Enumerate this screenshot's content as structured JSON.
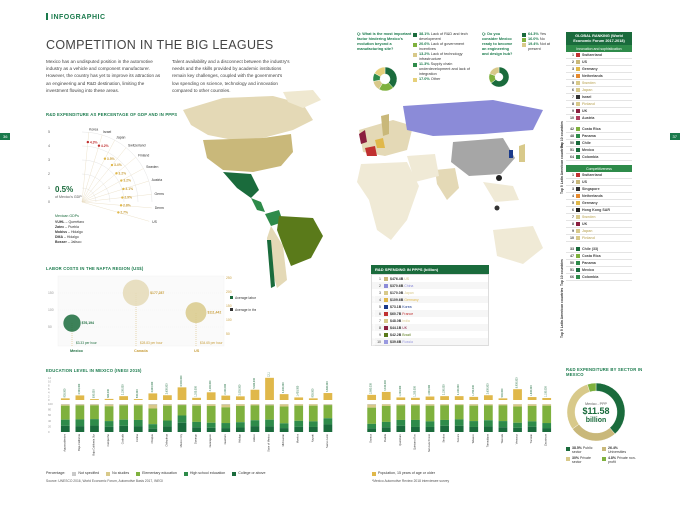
{
  "header": {
    "tag": "INFOGRAPHIC",
    "title": "COMPETITION IN THE BIG LEAGUES",
    "page_left": "36",
    "page_right": "37"
  },
  "intro": {
    "col1": "Mexico has an undisputed position in the automotive industry as a vehicle and component manufacturer. However, the country has yet to improve its attraction as an engineering and R&D destination, limiting the investment flowing into these areas.",
    "col2": "Talent availability and a disconnect between the industry's needs and the skills provided by academic institutions remain key challenges, coupled with the government's low spending on science, technology and innovation compared to other countries."
  },
  "rd_gdp": {
    "title": "R&D EXPENDITURE AS PERCENTAGE OF GDP AND IN PPPS",
    "center_value": "0.5%",
    "center_label": "of Mexico's GDP",
    "countries": [
      "Korea",
      "Israel",
      "Japan",
      "Switzerland",
      "Finland",
      "Sweden",
      "Austria",
      "Germany",
      "Denmark",
      "US"
    ],
    "values": [
      "4.3%",
      "4.2%",
      "3.5%",
      "3.4%",
      "3.2%",
      "3.2%",
      "3.1%",
      "2.9%",
      "2.8%",
      "2.7%"
    ],
    "axis": [
      "5",
      "4",
      "3",
      "2",
      "1",
      "0"
    ],
    "mexico_heading": "Mexican GDPs",
    "mexico_states": [
      {
        "name": "VUHL",
        "place": "Querétaro"
      },
      {
        "name": "Zatec",
        "place": "Puebla"
      },
      {
        "name": "Mobiss",
        "place": "Hidalgo"
      },
      {
        "name": "DMA",
        "place": "Hidalgo"
      },
      {
        "name": "Bosser",
        "place": "Jalisco"
      }
    ]
  },
  "labor": {
    "title": "LABOR COSTS IN THE NAFTA REGION (US$)",
    "countries": [
      "Mexico",
      "Canada",
      "US"
    ],
    "labor_cost": [
      "$76,194",
      "$177,287",
      "$111,442"
    ],
    "hourly": [
      "$3.33 per hour",
      "$28.83 per hour",
      "$34.65 per hour"
    ],
    "legend_labor": "Average labor cost",
    "legend_auto": "Average in the automotive industry",
    "yaxis_left": [
      "150",
      "100",
      "50"
    ],
    "yaxis_right": [
      "250",
      "200",
      "150",
      "100",
      "50"
    ]
  },
  "questions": {
    "q1": {
      "title": "Q: What is the most important factor hindering Mexico's evolution beyond a manufacturing site?",
      "answers": [
        {
          "pct": "38.1%",
          "text": "Lack of R&D and tech development",
          "color": "#1a6b3c"
        },
        {
          "pct": "20.6%",
          "text": "Lack of government incentives",
          "color": "#7fb13e"
        },
        {
          "pct": "13.2%",
          "text": "Lack of technology infrastructure",
          "color": "#d8c98a"
        },
        {
          "pct": "11.3%",
          "text": "Supply chain underdevelopment and lack of integration",
          "color": "#2e8b4a"
        },
        {
          "pct": "17.0%",
          "text": "Other",
          "color": "#e6d07a"
        }
      ]
    },
    "q2": {
      "title": "Q: Do you consider Mexico ready to become an engineering and design hub?",
      "answers": [
        {
          "pct": "64.3%",
          "text": "Yes",
          "color": "#1a6b3c"
        },
        {
          "pct": "16.0%",
          "text": "No",
          "color": "#7fb13e"
        },
        {
          "pct": "19.4%",
          "text": "Not at present",
          "color": "#d8c98a"
        }
      ]
    }
  },
  "ranking": {
    "title": "GLOBAL RANKING (World Economic Forum 2017-2018)",
    "innovation_label": "Innovation and sophistication",
    "innovation": [
      {
        "n": "1",
        "c": "Switzerland",
        "col": "#c03030"
      },
      {
        "n": "2",
        "c": "US",
        "col": "#c9b87a"
      },
      {
        "n": "3",
        "c": "Germany",
        "col": "#e0b84a"
      },
      {
        "n": "4",
        "c": "Netherlands",
        "col": "#e68a2e"
      },
      {
        "n": "5",
        "c": "Sweden",
        "col": "#d8c98a"
      },
      {
        "n": "6",
        "c": "Japan",
        "col": "#d8c98a"
      },
      {
        "n": "7",
        "c": "Israel",
        "col": "#333333"
      },
      {
        "n": "8",
        "c": "Finland",
        "col": "#d8c98a"
      },
      {
        "n": "9",
        "c": "UK",
        "col": "#8b1f3f"
      },
      {
        "n": "10",
        "c": "Austria",
        "col": "#b04060"
      }
    ],
    "innovation_latam": [
      {
        "n": "42",
        "c": "Costa Rica",
        "col": "#7fb13e"
      },
      {
        "n": "48",
        "c": "Panama",
        "col": "#2e8b4a"
      },
      {
        "n": "50",
        "c": "Chile",
        "col": "#1a6b3c"
      },
      {
        "n": "51",
        "c": "Mexico",
        "col": "#1a6b3c"
      },
      {
        "n": "64",
        "c": "Colombia",
        "col": "#2e8b4a"
      }
    ],
    "competitiveness_label": "Competitiveness",
    "competitiveness": [
      {
        "n": "1",
        "c": "Switzerland",
        "col": "#c03030"
      },
      {
        "n": "2",
        "c": "US",
        "col": "#c9b87a"
      },
      {
        "n": "3",
        "c": "Singapore",
        "col": "#333333"
      },
      {
        "n": "4",
        "c": "Netherlands",
        "col": "#e68a2e"
      },
      {
        "n": "5",
        "c": "Germany",
        "col": "#e0b84a"
      },
      {
        "n": "6",
        "c": "Hong Kong SAR",
        "col": "#222222"
      },
      {
        "n": "7",
        "c": "Sweden",
        "col": "#d8c98a"
      },
      {
        "n": "8",
        "c": "UK",
        "col": "#8b1f3f"
      },
      {
        "n": "9",
        "c": "Japan",
        "col": "#d8c98a"
      },
      {
        "n": "10",
        "c": "Finland",
        "col": "#d8c98a"
      }
    ],
    "competitiveness_latam": [
      {
        "n": "33",
        "c": "Chile (33)",
        "col": "#1a6b3c"
      },
      {
        "n": "47",
        "c": "Costa Rica",
        "col": "#7fb13e"
      },
      {
        "n": "50",
        "c": "Panama",
        "col": "#2e8b4a"
      },
      {
        "n": "51",
        "c": "Mexico",
        "col": "#1a6b3c"
      },
      {
        "n": "66",
        "c": "Colombia",
        "col": "#2e8b4a"
      }
    ],
    "side_top10": "Top 10 countries",
    "side_latam": "Top 5 Latin American countries"
  },
  "rd_ppp": {
    "title": "R&D SPENDING IN PPPS (billion)",
    "side": "Top 10 countries (UNESCO 2016)",
    "rows": [
      {
        "n": "1",
        "v": "$476.4B",
        "c": "US",
        "col": "#c9b87a"
      },
      {
        "n": "2",
        "v": "$370.6B",
        "c": "China",
        "col": "#8b8bd8"
      },
      {
        "n": "3",
        "v": "$170.0B",
        "c": "Japan",
        "col": "#d8c98a"
      },
      {
        "n": "4",
        "v": "$109.6B",
        "c": "Germany",
        "col": "#e0b84a"
      },
      {
        "n": "5",
        "v": "$73.1B",
        "c": "Korea",
        "col": "#1a3a8b"
      },
      {
        "n": "6",
        "v": "$60.7B",
        "c": "France",
        "col": "#c03030"
      },
      {
        "n": "7",
        "v": "$48.0B",
        "c": "India",
        "col": "#d8c98a"
      },
      {
        "n": "8",
        "v": "$44.1B",
        "c": "UK",
        "col": "#8b1f3f"
      },
      {
        "n": "9",
        "v": "$42.2B",
        "c": "Brazil",
        "col": "#5a7a1a"
      },
      {
        "n": "10",
        "v": "$39.6B",
        "c": "Russia",
        "col": "#9a9ae0"
      }
    ]
  },
  "rd_sector": {
    "title": "R&D EXPENDITURE BY SECTOR IN MEXICO",
    "center_label": "Mexico - PPP",
    "center_value": "$11.58",
    "center_unit": "billion",
    "items": [
      {
        "pct": "38.5%",
        "text": "Public sector",
        "color": "#1a6b3c"
      },
      {
        "pct": "26.4%",
        "text": "Universities",
        "color": "#c9b87a"
      },
      {
        "pct": "30%",
        "text": "Private sector",
        "color": "#d8c98a"
      },
      {
        "pct": "4.8%",
        "text": "Private non-profit",
        "color": "#7fb13e"
      }
    ]
  },
  "education": {
    "title": "EDUCATION LEVEL IN MEXICO (INEGI 2015)",
    "legend_label": "Percentage:",
    "legend": [
      {
        "t": "Not specified",
        "col": "#c9c9c9"
      },
      {
        "t": "No studies",
        "col": "#d8c98a"
      },
      {
        "t": "Elementary education",
        "col": "#7fb13e"
      },
      {
        "t": "High school education",
        "col": "#2e8b4a"
      },
      {
        "t": "College or above",
        "col": "#1a6b3c"
      }
    ],
    "population_label": "Population, 15 years of age or older",
    "source": "Source: UNESCO 2016, World Economic Forum, Automotive Basis 2017, INEGI",
    "footnote": "*Mexico Automotive Review 2018 interviewee survey",
    "yaxis": [
      "100",
      "80",
      "60",
      "40",
      "20",
      "0"
    ],
    "pop_axis": [
      "12",
      "10",
      "8",
      "6",
      "4",
      "2",
      "0"
    ]
  },
  "chart_data": [
    {
      "type": "bar",
      "title": "EDUCATION LEVEL IN MEXICO (INEGI 2015)",
      "categories": [
        "Aguascalientes",
        "Baja California",
        "Baja California Sur",
        "Campeche",
        "Coahuila",
        "Colima",
        "Chiapas",
        "Chihuahua",
        "Mexico City",
        "Durango",
        "Guanajuato",
        "Guerrero",
        "Hidalgo",
        "Jalisco",
        "State of Mexico",
        "Michoacán",
        "Morelos",
        "Nayarit",
        "Nuevo León",
        "Oaxaca",
        "Puebla",
        "Querétaro",
        "Quintana Roo",
        "San Luis Potosí",
        "Sinaloa",
        "Sonora",
        "Tabasco",
        "Tamaulipas",
        "Tlaxcala",
        "Veracruz",
        "Yucatán",
        "Zacatecas"
      ],
      "series": [
        {
          "name": "Population, 15 years of age or older",
          "values": [
            0.9,
            2.5,
            0.5,
            0.6,
            2.1,
            0.5,
            3.6,
            2.6,
            6.9,
            1.2,
            4.2,
            2.4,
            2.0,
            5.6,
            12.1,
            3.2,
            1.4,
            0.9,
            3.8,
            2.8,
            4.4,
            1.4,
            1.2,
            1.9,
            2.1,
            2.1,
            1.7,
            2.6,
            0.9,
            5.9,
            1.6,
            1.1
          ]
        },
        {
          "name": "College or above",
          "values": [
            22,
            21,
            23,
            19,
            22,
            21,
            12,
            20,
            33,
            17,
            15,
            14,
            16,
            21,
            20,
            14,
            19,
            18,
            27,
            13,
            17,
            22,
            18,
            18,
            22,
            22,
            18,
            20,
            17,
            15,
            19,
            14
          ]
        },
        {
          "name": "High school education",
          "values": [
            22,
            24,
            23,
            20,
            22,
            22,
            16,
            21,
            26,
            19,
            18,
            18,
            19,
            21,
            24,
            17,
            21,
            20,
            22,
            16,
            19,
            21,
            25,
            20,
            21,
            23,
            21,
            22,
            22,
            18,
            19,
            18
          ]
        },
        {
          "name": "Elementary education",
          "values": [
            50,
            50,
            49,
            53,
            51,
            52,
            56,
            53,
            37,
            58,
            60,
            56,
            58,
            53,
            51,
            60,
            54,
            56,
            47,
            58,
            57,
            52,
            52,
            56,
            52,
            51,
            55,
            53,
            56,
            58,
            55,
            62
          ]
        },
        {
          "name": "No studies",
          "values": [
            4,
            3,
            3,
            6,
            3,
            4,
            14,
            4,
            2,
            4,
            6,
            10,
            6,
            4,
            3,
            8,
            5,
            5,
            2,
            11,
            6,
            4,
            4,
            5,
            4,
            3,
            5,
            4,
            4,
            8,
            6,
            5
          ]
        },
        {
          "name": "Not specified",
          "values": [
            2,
            2,
            2,
            2,
            2,
            1,
            2,
            2,
            2,
            2,
            1,
            2,
            1,
            1,
            2,
            1,
            1,
            1,
            2,
            2,
            1,
            1,
            1,
            1,
            1,
            1,
            1,
            1,
            1,
            1,
            1,
            1
          ]
        }
      ],
      "ylim": [
        0,
        100
      ]
    },
    {
      "type": "pie",
      "title": "R&D EXPENDITURE BY SECTOR IN MEXICO",
      "categories": [
        "Public sector",
        "Universities",
        "Private sector",
        "Private non-profit"
      ],
      "values": [
        38.5,
        26.4,
        30.0,
        4.8
      ]
    },
    {
      "type": "pie",
      "title": "Q: What is the most important factor hindering Mexico's evolution beyond a manufacturing site?",
      "categories": [
        "Lack of R&D and tech development",
        "Lack of government incentives",
        "Lack of technology infrastructure",
        "Supply chain underdevelopment and lack of integration",
        "Other"
      ],
      "values": [
        38.1,
        20.6,
        13.2,
        11.3,
        17.0
      ]
    },
    {
      "type": "pie",
      "title": "Q: Do you consider Mexico ready to become an engineering and design hub?",
      "categories": [
        "Yes",
        "No",
        "Not at present"
      ],
      "values": [
        64.3,
        16.0,
        19.4
      ]
    },
    {
      "type": "scatter",
      "title": "R&D EXPENDITURE AS PERCENTAGE OF GDP AND IN PPPS",
      "categories": [
        "Korea",
        "Israel",
        "Japan",
        "Switzerland",
        "Finland",
        "Sweden",
        "Austria",
        "Germany",
        "Denmark",
        "US"
      ],
      "values": [
        4.3,
        4.2,
        3.5,
        3.4,
        3.2,
        3.2,
        3.1,
        2.9,
        2.8,
        2.7
      ],
      "ylim": [
        0,
        5
      ]
    },
    {
      "type": "bar",
      "title": "LABOR COSTS IN THE NAFTA REGION (US$)",
      "categories": [
        "Mexico",
        "Canada",
        "US"
      ],
      "series": [
        {
          "name": "Average labor cost",
          "values": [
            76194,
            177287,
            111442
          ]
        }
      ]
    }
  ]
}
